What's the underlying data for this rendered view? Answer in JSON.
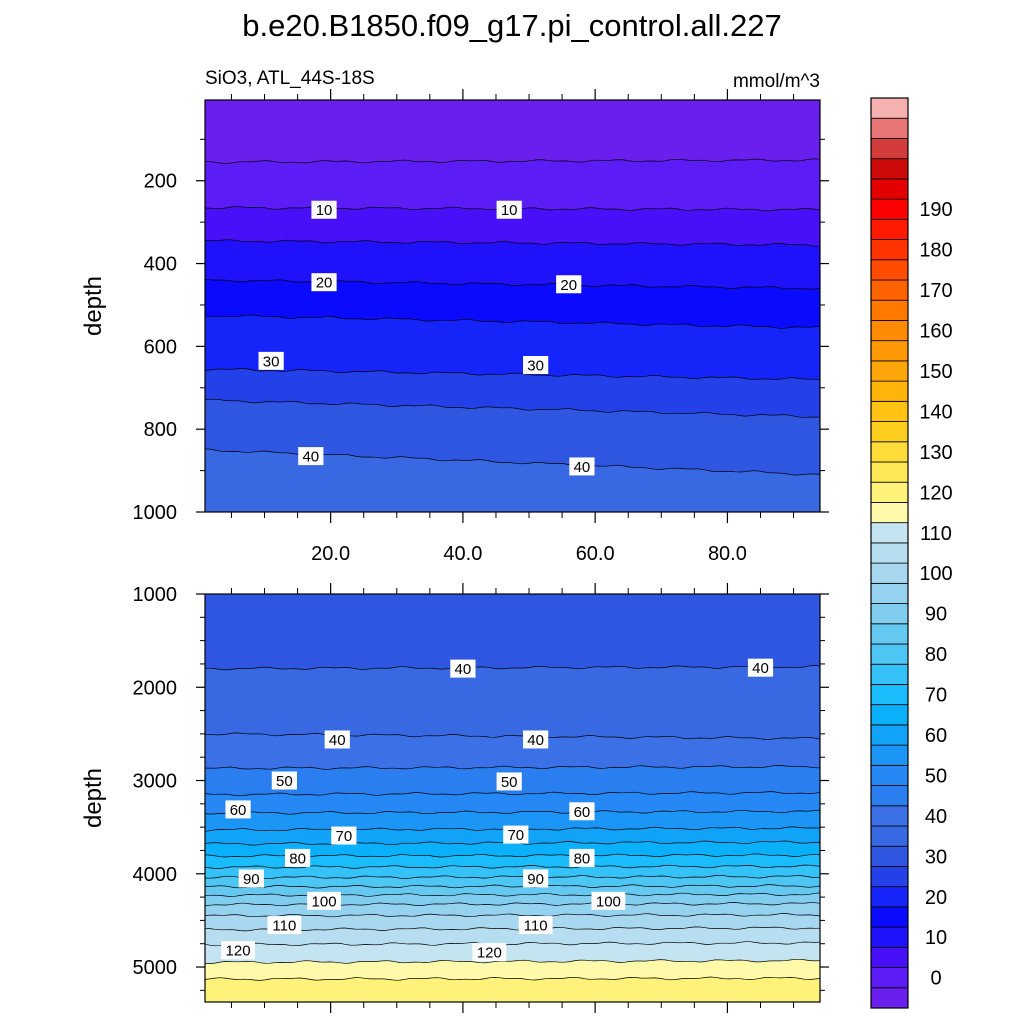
{
  "title": "b.e20.B1850.f09_g17.pi_control.all.227",
  "subtitle_left": "SiO3, ATL_44S-18S",
  "subtitle_right": "mmol/m^3",
  "chart_data": [
    {
      "type": "heatmap",
      "panel": "upper",
      "xlabel": "",
      "ylabel": "depth",
      "xlim": [
        1,
        94
      ],
      "ylim": [
        1000,
        5
      ],
      "y_reversed": true,
      "yticks": [
        200,
        400,
        600,
        800,
        1000
      ],
      "ytick_labels": [
        "200",
        "400",
        "600",
        "800",
        "1000"
      ],
      "xticks": [
        20,
        40,
        60,
        80
      ],
      "xtick_labels": [
        "20.0",
        "40.0",
        "60.0",
        "80.0"
      ],
      "contour_depths": [
        {
          "level": 5,
          "depth_left": 155,
          "depth_right": 150
        },
        {
          "level": 10,
          "depth_left": 265,
          "depth_right": 270
        },
        {
          "level": 15,
          "depth_left": 345,
          "depth_right": 355
        },
        {
          "level": 20,
          "depth_left": 440,
          "depth_right": 460
        },
        {
          "level": 25,
          "depth_left": 525,
          "depth_right": 555
        },
        {
          "level": 30,
          "depth_left": 655,
          "depth_right": 680
        },
        {
          "level": 35,
          "depth_left": 730,
          "depth_right": 770
        },
        {
          "level": 40,
          "depth_left": 850,
          "depth_right": 910
        }
      ],
      "contour_labels": [
        {
          "text": "10",
          "x": 19,
          "depth": 270
        },
        {
          "text": "10",
          "x": 47,
          "depth": 270
        },
        {
          "text": "20",
          "x": 19,
          "depth": 445
        },
        {
          "text": "20",
          "x": 56,
          "depth": 450
        },
        {
          "text": "30",
          "x": 11,
          "depth": 635
        },
        {
          "text": "30",
          "x": 51,
          "depth": 645
        },
        {
          "text": "40",
          "x": 17,
          "depth": 865
        },
        {
          "text": "40",
          "x": 58,
          "depth": 890
        }
      ]
    },
    {
      "type": "heatmap",
      "panel": "lower",
      "xlabel": "",
      "ylabel": "depth",
      "xlim": [
        1,
        94
      ],
      "ylim": [
        5375,
        1000
      ],
      "y_reversed": true,
      "yticks": [
        1000,
        2000,
        3000,
        4000,
        5000
      ],
      "ytick_labels": [
        "1000",
        "2000",
        "3000",
        "4000",
        "5000"
      ],
      "xticks": [
        20,
        40,
        60,
        80
      ],
      "xtick_labels": [],
      "contour_depths": [
        {
          "level": 40,
          "depth_left": 1800,
          "depth_right": 1780
        },
        {
          "level": 45,
          "depth_left": 2500,
          "depth_right": 2550
        },
        {
          "level": 50,
          "depth_left": 2870,
          "depth_right": 2850
        },
        {
          "level": 55,
          "depth_left": 3150,
          "depth_right": 3130
        },
        {
          "level": 60,
          "depth_left": 3350,
          "depth_right": 3330
        },
        {
          "level": 65,
          "depth_left": 3530,
          "depth_right": 3510
        },
        {
          "level": 70,
          "depth_left": 3680,
          "depth_right": 3660
        },
        {
          "level": 75,
          "depth_left": 3810,
          "depth_right": 3800
        },
        {
          "level": 80,
          "depth_left": 3930,
          "depth_right": 3920
        },
        {
          "level": 85,
          "depth_left": 4040,
          "depth_right": 4030
        },
        {
          "level": 90,
          "depth_left": 4140,
          "depth_right": 4130
        },
        {
          "level": 95,
          "depth_left": 4230,
          "depth_right": 4220
        },
        {
          "level": 100,
          "depth_left": 4330,
          "depth_right": 4320
        },
        {
          "level": 105,
          "depth_left": 4450,
          "depth_right": 4440
        },
        {
          "level": 110,
          "depth_left": 4600,
          "depth_right": 4580
        },
        {
          "level": 115,
          "depth_left": 4760,
          "depth_right": 4740
        },
        {
          "level": 120,
          "depth_left": 4950,
          "depth_right": 4930
        },
        {
          "level": 125,
          "depth_left": 5130,
          "depth_right": 5120
        }
      ],
      "contour_labels": [
        {
          "text": "40",
          "x": 40,
          "depth": 1800
        },
        {
          "text": "40",
          "x": 85,
          "depth": 1790
        },
        {
          "text": "40",
          "x": 21,
          "depth": 2560
        },
        {
          "text": "40",
          "x": 51,
          "depth": 2560
        },
        {
          "text": "50",
          "x": 13,
          "depth": 3000
        },
        {
          "text": "50",
          "x": 47,
          "depth": 3010
        },
        {
          "text": "60",
          "x": 6,
          "depth": 3310
        },
        {
          "text": "60",
          "x": 58,
          "depth": 3330
        },
        {
          "text": "70",
          "x": 22,
          "depth": 3590
        },
        {
          "text": "70",
          "x": 48,
          "depth": 3580
        },
        {
          "text": "80",
          "x": 15,
          "depth": 3830
        },
        {
          "text": "80",
          "x": 58,
          "depth": 3830
        },
        {
          "text": "90",
          "x": 8,
          "depth": 4050
        },
        {
          "text": "90",
          "x": 51,
          "depth": 4050
        },
        {
          "text": "100",
          "x": 19,
          "depth": 4290
        },
        {
          "text": "100",
          "x": 62,
          "depth": 4290
        },
        {
          "text": "110",
          "x": 13,
          "depth": 4550
        },
        {
          "text": "110",
          "x": 51,
          "depth": 4550
        },
        {
          "text": "120",
          "x": 6,
          "depth": 4820
        },
        {
          "text": "120",
          "x": 44,
          "depth": 4840
        }
      ]
    }
  ],
  "colorbar": {
    "levels": [
      0,
      10,
      20,
      30,
      40,
      50,
      60,
      70,
      80,
      90,
      100,
      110,
      120,
      130,
      140,
      150,
      160,
      170,
      180,
      190
    ],
    "labels": [
      "0",
      "10",
      "20",
      "30",
      "40",
      "50",
      "60",
      "70",
      "80",
      "90",
      "100",
      "110",
      "120",
      "130",
      "140",
      "150",
      "160",
      "170",
      "180",
      "190"
    ],
    "colors": [
      "#6a1fee",
      "#5c1cf6",
      "#4810f8",
      "#1f12fb",
      "#0a0aff",
      "#1525fa",
      "#2440e8",
      "#2e56e0",
      "#3868e2",
      "#3c70e6",
      "#2a7ef0",
      "#2588f4",
      "#1b96f6",
      "#11a3f8",
      "#0bb0fb",
      "#1abcfb",
      "#35c2f8",
      "#4dc6f4",
      "#65c8f0",
      "#80cdf0",
      "#95d2ef",
      "#a8d8ef",
      "#b7def0",
      "#c4e4f2",
      "#fffaaa",
      "#fff27a",
      "#ffe855",
      "#ffdc3a",
      "#ffcf20",
      "#ffc213",
      "#ffb40c",
      "#ffa60a",
      "#ff9907",
      "#ff8a04",
      "#ff7800",
      "#ff6200",
      "#ff4c00",
      "#ff3400",
      "#ff1a00",
      "#ff0000",
      "#e40000",
      "#cc0a0a",
      "#d43c3c",
      "#e87575",
      "#f7b0b0"
    ]
  }
}
